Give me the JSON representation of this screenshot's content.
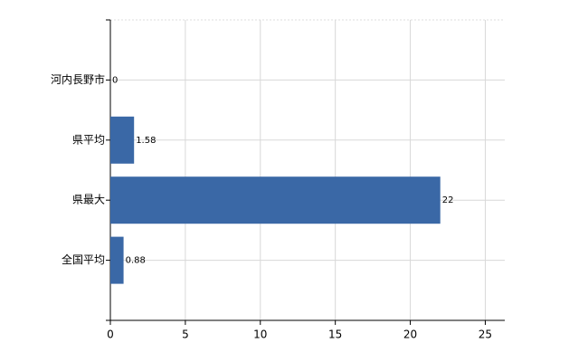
{
  "chart_data": {
    "type": "hbar",
    "categories": [
      "河内長野市",
      "県平均",
      "県最大",
      "全国平均"
    ],
    "values": [
      0,
      1.58,
      22,
      0.88
    ],
    "color": "#3a68a6",
    "xlim": [
      0,
      26.3
    ],
    "xticks": [
      0,
      5,
      10,
      15,
      20,
      25
    ],
    "grid": true
  }
}
